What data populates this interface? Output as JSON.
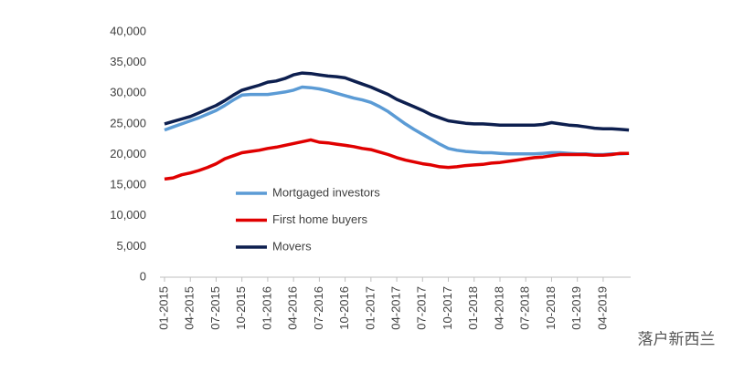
{
  "chart_data": {
    "type": "line",
    "categories": [
      "01-2015",
      null,
      null,
      "04-2015",
      null,
      null,
      "07-2015",
      null,
      null,
      "10-2015",
      null,
      null,
      "01-2016",
      null,
      null,
      "04-2016",
      null,
      null,
      "07-2016",
      null,
      null,
      "10-2016",
      null,
      null,
      "01-2017",
      null,
      null,
      "04-2017",
      null,
      null,
      "07-2017",
      null,
      null,
      "10-2017",
      null,
      null,
      "01-2018",
      null,
      null,
      "04-2018",
      null,
      null,
      "07-2018",
      null,
      null,
      "10-2018",
      null,
      null,
      "01-2019",
      null,
      null,
      "04-2019",
      null,
      null,
      null
    ],
    "series": [
      {
        "name": "Mortgaged investors",
        "color": "#5b9bd5",
        "values": [
          24000,
          24500,
          25000,
          25500,
          26000,
          26600,
          27200,
          28000,
          28900,
          29700,
          29800,
          29800,
          29800,
          30000,
          30200,
          30500,
          31000,
          30900,
          30700,
          30400,
          30000,
          29600,
          29200,
          28900,
          28500,
          27800,
          27000,
          26000,
          25000,
          24100,
          23300,
          22500,
          21700,
          21000,
          20700,
          20500,
          20400,
          20300,
          20300,
          20200,
          20100,
          20100,
          20100,
          20100,
          20200,
          20300,
          20300,
          20200,
          20100,
          20100,
          20000,
          20000,
          20100,
          20100,
          20200
        ]
      },
      {
        "name": "First home buyers",
        "color": "#e00000",
        "values": [
          16000,
          16200,
          16700,
          17000,
          17400,
          17900,
          18500,
          19300,
          19800,
          20300,
          20500,
          20700,
          21000,
          21200,
          21500,
          21800,
          22100,
          22400,
          22000,
          21900,
          21700,
          21500,
          21300,
          21000,
          20800,
          20400,
          20000,
          19500,
          19100,
          18800,
          18500,
          18300,
          18000,
          17900,
          18000,
          18200,
          18300,
          18400,
          18600,
          18700,
          18900,
          19100,
          19300,
          19500,
          19600,
          19800,
          20000,
          20000,
          20000,
          20000,
          19900,
          19900,
          20000,
          20200,
          20200
        ]
      },
      {
        "name": "Movers",
        "color": "#0d1f4f",
        "values": [
          25000,
          25400,
          25800,
          26200,
          26800,
          27400,
          28000,
          28800,
          29700,
          30500,
          30900,
          31300,
          31800,
          32000,
          32400,
          33000,
          33300,
          33200,
          33000,
          32800,
          32700,
          32500,
          32000,
          31500,
          31000,
          30400,
          29800,
          29000,
          28400,
          27800,
          27200,
          26500,
          26000,
          25500,
          25300,
          25100,
          25000,
          25000,
          24900,
          24800,
          24800,
          24800,
          24800,
          24800,
          24900,
          25200,
          25000,
          24800,
          24700,
          24500,
          24300,
          24200,
          24200,
          24100,
          24000
        ]
      }
    ],
    "ylim": [
      0,
      40000
    ],
    "yticks": [
      0,
      {
        "value": 5000,
        "label": "5,000"
      },
      {
        "value": 10000,
        "label": "10,000"
      },
      {
        "value": 15000,
        "label": "15,000"
      },
      {
        "value": 20000,
        "label": "20,000"
      },
      {
        "value": 25000,
        "label": "25,000"
      },
      {
        "value": 30000,
        "label": "30,000"
      },
      {
        "value": 35000,
        "label": "35,000"
      },
      {
        "value": 40000,
        "label": "40,000"
      }
    ],
    "grid": false,
    "watermark": "落户新西兰"
  }
}
